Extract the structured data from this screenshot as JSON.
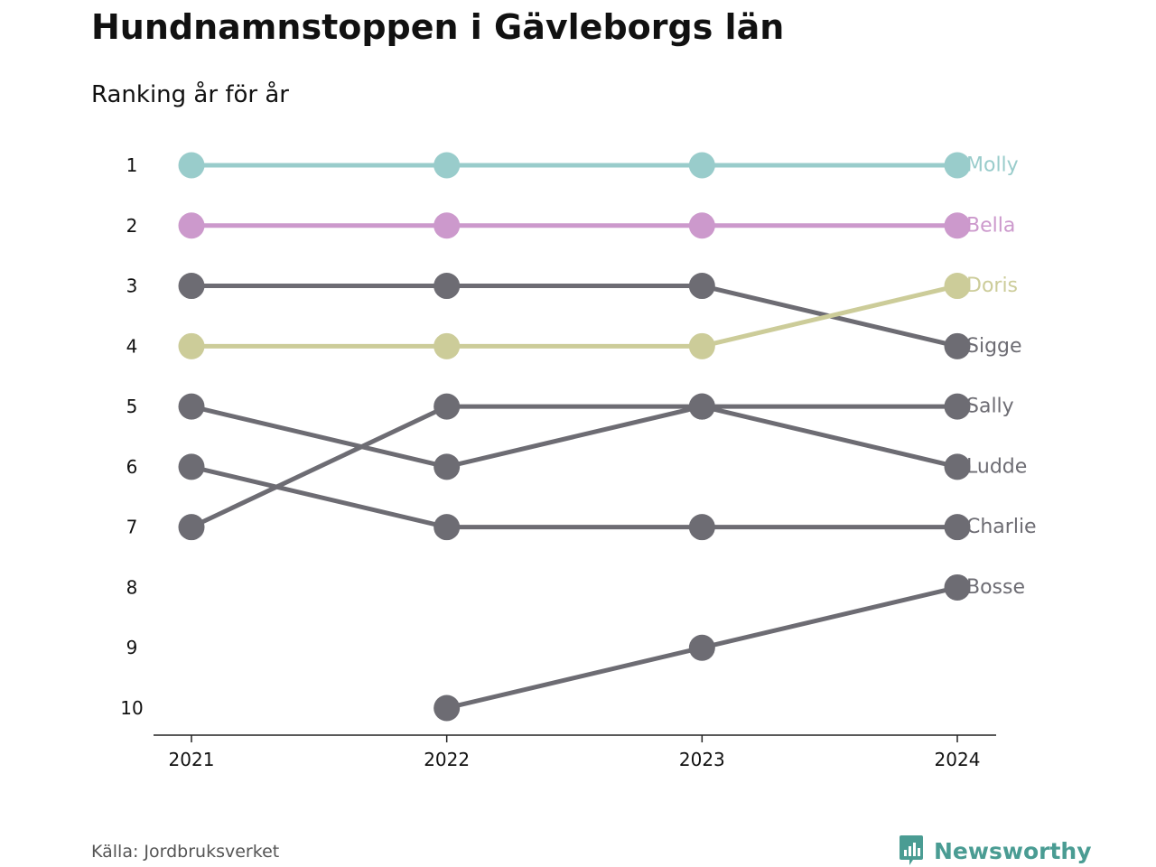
{
  "header": {
    "title": "Hundnamnstoppen i Gävleborgs län",
    "subtitle": "Ranking år för år"
  },
  "footer": {
    "source": "Källa: Jordbruksverket",
    "brand_name": "Newsworthy",
    "brand_icon": "newsworthy-logo-icon"
  },
  "colors": {
    "text": "#111111",
    "axis": "#222222",
    "default_series": "#6d6c73",
    "brand": "#4a9c93"
  },
  "chart_data": {
    "type": "line",
    "subtype": "bump",
    "x": [
      "2021",
      "2022",
      "2023",
      "2024"
    ],
    "y_ticks": [
      "1",
      "2",
      "3",
      "4",
      "5",
      "6",
      "7",
      "8",
      "9",
      "10"
    ],
    "ylim": [
      1,
      10
    ],
    "y_reversed": true,
    "grid": false,
    "series": [
      {
        "name": "Molly",
        "values": [
          1,
          1,
          1,
          1
        ],
        "color": "#99cccb"
      },
      {
        "name": "Bella",
        "values": [
          2,
          2,
          2,
          2
        ],
        "color": "#cc99cc"
      },
      {
        "name": "Doris",
        "values": [
          4,
          4,
          4,
          3
        ],
        "color": "#cccc99"
      },
      {
        "name": "Sigge",
        "values": [
          3,
          3,
          3,
          4
        ],
        "color": "#6d6c73"
      },
      {
        "name": "Sally",
        "values": [
          7,
          5,
          5,
          5
        ],
        "color": "#6d6c73"
      },
      {
        "name": "Ludde",
        "values": [
          5,
          6,
          5,
          6
        ],
        "color": "#6d6c73"
      },
      {
        "name": "Charlie",
        "values": [
          6,
          7,
          7,
          7
        ],
        "color": "#6d6c73"
      },
      {
        "name": "Bosse",
        "values": [
          null,
          10,
          9,
          8
        ],
        "color": "#6d6c73"
      }
    ]
  }
}
